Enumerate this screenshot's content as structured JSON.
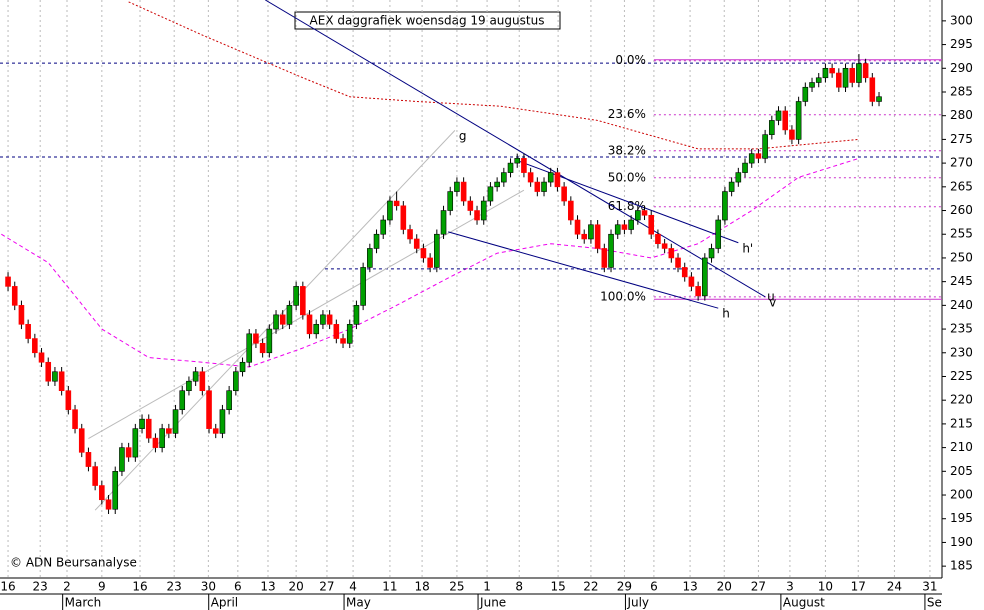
{
  "chart_data": {
    "type": "candlestick",
    "title": "AEX daggrafiek woensdag 19 augustus",
    "copyright": "© ADN Beursanalyse",
    "xlim": [
      -1.2,
      139.4
    ],
    "ylim": [
      182.5,
      304.4
    ],
    "yticks": [
      185,
      190,
      195,
      200,
      205,
      210,
      215,
      220,
      225,
      230,
      235,
      240,
      245,
      250,
      255,
      260,
      265,
      270,
      275,
      280,
      285,
      290,
      295,
      300
    ],
    "xticks": [
      {
        "value": 0,
        "label": "16"
      },
      {
        "value": 4.8,
        "label": "23"
      },
      {
        "value": 8.8,
        "label": "2"
      },
      {
        "value": 14,
        "label": "9"
      },
      {
        "value": 19.7,
        "label": "16"
      },
      {
        "value": 24.8,
        "label": "23"
      },
      {
        "value": 29.9,
        "label": "30"
      },
      {
        "value": 34.3,
        "label": "6"
      },
      {
        "value": 38.8,
        "label": "13"
      },
      {
        "value": 43,
        "label": "20"
      },
      {
        "value": 47.6,
        "label": "27"
      },
      {
        "value": 51.5,
        "label": "4"
      },
      {
        "value": 57,
        "label": "11"
      },
      {
        "value": 61.8,
        "label": "18"
      },
      {
        "value": 67,
        "label": "25"
      },
      {
        "value": 71.5,
        "label": "1"
      },
      {
        "value": 76.3,
        "label": "8"
      },
      {
        "value": 82.1,
        "label": "15"
      },
      {
        "value": 87,
        "label": "22"
      },
      {
        "value": 92,
        "label": "29"
      },
      {
        "value": 96.4,
        "label": "6"
      },
      {
        "value": 101.8,
        "label": "13"
      },
      {
        "value": 106.9,
        "label": "20"
      },
      {
        "value": 112,
        "label": "27"
      },
      {
        "value": 116.7,
        "label": "3"
      },
      {
        "value": 122,
        "label": "10"
      },
      {
        "value": 126.9,
        "label": "17"
      },
      {
        "value": 132.3,
        "label": "24"
      },
      {
        "value": 137.6,
        "label": "31"
      }
    ],
    "months": [
      {
        "value": 8.6,
        "label": "March"
      },
      {
        "value": 30.4,
        "label": "April"
      },
      {
        "value": 50.6,
        "label": "May"
      },
      {
        "value": 70.6,
        "label": "June"
      },
      {
        "value": 92.6,
        "label": "July"
      },
      {
        "value": 115.8,
        "label": "August"
      },
      {
        "value": 137.3,
        "label": "Se"
      }
    ],
    "up_color": "#00a000",
    "down_color": "#ff0000",
    "ohlc": [
      [
        246,
        247,
        243,
        244
      ],
      [
        244,
        245,
        239,
        240
      ],
      [
        240,
        241,
        235,
        236
      ],
      [
        236,
        237,
        232,
        233
      ],
      [
        233,
        234,
        229,
        230
      ],
      [
        230,
        231,
        227,
        228
      ],
      [
        228,
        229,
        223,
        224
      ],
      [
        224,
        227,
        223,
        226
      ],
      [
        226,
        227,
        221,
        222
      ],
      [
        222,
        223,
        217,
        218
      ],
      [
        218,
        219,
        213,
        214
      ],
      [
        214,
        215,
        208,
        209
      ],
      [
        209,
        210,
        205,
        206
      ],
      [
        206,
        207,
        201,
        202
      ],
      [
        202,
        203,
        198,
        199
      ],
      [
        199,
        200,
        196,
        197
      ],
      [
        197,
        206,
        196,
        205
      ],
      [
        205,
        211,
        204,
        210
      ],
      [
        210,
        211,
        207,
        208
      ],
      [
        208,
        215,
        207,
        214
      ],
      [
        214,
        217,
        213,
        216
      ],
      [
        216,
        217,
        211,
        212
      ],
      [
        212,
        213,
        209,
        210
      ],
      [
        210,
        215,
        209,
        214
      ],
      [
        214,
        215,
        212,
        213
      ],
      [
        213,
        219,
        212,
        218
      ],
      [
        218,
        223,
        217,
        222
      ],
      [
        222,
        225,
        221,
        224
      ],
      [
        224,
        227,
        223,
        226
      ],
      [
        226,
        227,
        221,
        222
      ],
      [
        222,
        223,
        213,
        214
      ],
      [
        214,
        215,
        212,
        213
      ],
      [
        213,
        219,
        212,
        218
      ],
      [
        218,
        223,
        217,
        222
      ],
      [
        222,
        227,
        221,
        226
      ],
      [
        226,
        229,
        225,
        228
      ],
      [
        228,
        235,
        227,
        234
      ],
      [
        234,
        235,
        231,
        232
      ],
      [
        232,
        233,
        229,
        230
      ],
      [
        230,
        236,
        229,
        235
      ],
      [
        235,
        239,
        234,
        238
      ],
      [
        238,
        239,
        235,
        236
      ],
      [
        236,
        241,
        235,
        240
      ],
      [
        240,
        245,
        239,
        244
      ],
      [
        244,
        245,
        237,
        238
      ],
      [
        238,
        239,
        233,
        234
      ],
      [
        234,
        237,
        233,
        236
      ],
      [
        236,
        239,
        235,
        238
      ],
      [
        238,
        239,
        235,
        236
      ],
      [
        236,
        237,
        232,
        233
      ],
      [
        233,
        234,
        231,
        232
      ],
      [
        232,
        237,
        231,
        236
      ],
      [
        236,
        241,
        235,
        240
      ],
      [
        240,
        249,
        239,
        248
      ],
      [
        248,
        253,
        247,
        252
      ],
      [
        252,
        256,
        251,
        255
      ],
      [
        255,
        259,
        254,
        258
      ],
      [
        258,
        263,
        257,
        262
      ],
      [
        262,
        264,
        260,
        261
      ],
      [
        261,
        262,
        255,
        256
      ],
      [
        256,
        257,
        253,
        254
      ],
      [
        254,
        255,
        251,
        252
      ],
      [
        252,
        253,
        249,
        250
      ],
      [
        250,
        251,
        247,
        248
      ],
      [
        248,
        256,
        247,
        255
      ],
      [
        255,
        261,
        254,
        260
      ],
      [
        260,
        265,
        259,
        264
      ],
      [
        264,
        267,
        263,
        266
      ],
      [
        266,
        267,
        261,
        262
      ],
      [
        262,
        263,
        259,
        260
      ],
      [
        260,
        261,
        257,
        258
      ],
      [
        258,
        263,
        257,
        262
      ],
      [
        262,
        266,
        261,
        265
      ],
      [
        265,
        267,
        264,
        266
      ],
      [
        266,
        269,
        265,
        268
      ],
      [
        268,
        271,
        267,
        270
      ],
      [
        270,
        272,
        269,
        271
      ],
      [
        271,
        272,
        267,
        268
      ],
      [
        268,
        269,
        265,
        266
      ],
      [
        266,
        267,
        263,
        264
      ],
      [
        264,
        267,
        263,
        266
      ],
      [
        266,
        269,
        265,
        268
      ],
      [
        268,
        269,
        264,
        265
      ],
      [
        265,
        266,
        261,
        262
      ],
      [
        262,
        263,
        257,
        258
      ],
      [
        258,
        259,
        254,
        255
      ],
      [
        255,
        256,
        253,
        254
      ],
      [
        254,
        258,
        253,
        257
      ],
      [
        257,
        258,
        251,
        252
      ],
      [
        252,
        253,
        247,
        248
      ],
      [
        248,
        256,
        247,
        255
      ],
      [
        255,
        258,
        254,
        257
      ],
      [
        257,
        258,
        255,
        256
      ],
      [
        256,
        259,
        255,
        258
      ],
      [
        258,
        261,
        257,
        260
      ],
      [
        260,
        261,
        258,
        259
      ],
      [
        259,
        260,
        254,
        255
      ],
      [
        255,
        256,
        252,
        253
      ],
      [
        253,
        254,
        251,
        252
      ],
      [
        252,
        253,
        249,
        250
      ],
      [
        250,
        251,
        247,
        248
      ],
      [
        248,
        249,
        245,
        246
      ],
      [
        246,
        247,
        243,
        244
      ],
      [
        244,
        245,
        241,
        242
      ],
      [
        242,
        251,
        241,
        250
      ],
      [
        250,
        253,
        249,
        252
      ],
      [
        252,
        259,
        251,
        258
      ],
      [
        258,
        265,
        257,
        264
      ],
      [
        264,
        267,
        263,
        266
      ],
      [
        266,
        269,
        265,
        268
      ],
      [
        268,
        271,
        267,
        270
      ],
      [
        270,
        273,
        269,
        272
      ],
      [
        272,
        273,
        270,
        271
      ],
      [
        271,
        277,
        270,
        276
      ],
      [
        276,
        280,
        275,
        279
      ],
      [
        279,
        282,
        278,
        281
      ],
      [
        281,
        282,
        276,
        277
      ],
      [
        277,
        278,
        274,
        275
      ],
      [
        275,
        284,
        274,
        283
      ],
      [
        283,
        287,
        282,
        286
      ],
      [
        286,
        288,
        285,
        287
      ],
      [
        287,
        289,
        286,
        288
      ],
      [
        288,
        291,
        287,
        290
      ],
      [
        290,
        291,
        288,
        289
      ],
      [
        289,
        290,
        285,
        286
      ],
      [
        286,
        291,
        285,
        290
      ],
      [
        290,
        291,
        286,
        287
      ],
      [
        287,
        293,
        286,
        291
      ],
      [
        291,
        292,
        287,
        288
      ],
      [
        288,
        289,
        282,
        283
      ],
      [
        283,
        285,
        282,
        284
      ]
    ],
    "moving_averages": [
      {
        "color": "#cc0000",
        "x": [
          18,
          29,
          44,
          51,
          61,
          73.5,
          88,
          103,
          112,
          127
        ],
        "values": [
          304,
          297,
          288,
          284,
          283,
          282,
          279,
          273,
          273,
          275
        ]
      },
      {
        "color": "#ee00ee",
        "x": [
          -1,
          6,
          14,
          21,
          29,
          36,
          44,
          51,
          58,
          66,
          73,
          81,
          88,
          96,
          103,
          111,
          118,
          127
        ],
        "values": [
          255,
          249,
          235,
          229,
          228,
          227,
          231,
          235,
          240,
          246,
          251,
          253,
          252,
          250,
          253,
          260,
          267,
          271
        ]
      }
    ],
    "fibonacci": {
      "color": "#cc33cc",
      "start": 96.4,
      "levels": [
        {
          "label": "0.0%",
          "value": 291.6
        },
        {
          "label": "23.6%",
          "value": 280.2
        },
        {
          "label": "38.2%",
          "value": 272.6
        },
        {
          "label": "50.0%",
          "value": 266.9
        },
        {
          "label": "61.8%",
          "value": 260.8
        },
        {
          "label": "100.0%",
          "value": 241.8
        }
      ]
    },
    "hlines": [
      {
        "value": 291.1,
        "start": -1.2,
        "color": "#000080"
      },
      {
        "value": 271.3,
        "start": -1.2,
        "color": "#000080"
      },
      {
        "value": 247.7,
        "start": 47.3,
        "color": "#000080"
      }
    ],
    "solid_hlines": [
      {
        "value": 291.8,
        "start": 96.4,
        "color": "#cc33cc"
      },
      {
        "value": 241.3,
        "start": 96.4,
        "color": "#cc33cc"
      }
    ],
    "trendlines": [
      {
        "label": "g",
        "color": "#bbbbbb",
        "x": [
          13,
          66.7
        ],
        "values": [
          196.8,
          276.9
        ]
      },
      {
        "color": "#bbbbbb",
        "x": [
          12,
          77
        ],
        "values": [
          211.9,
          264.3
        ]
      },
      {
        "label": "v",
        "color": "#000080",
        "x": [
          38.4,
          113
        ],
        "values": [
          304.4,
          241.8
        ]
      },
      {
        "label": "h'",
        "color": "#000080",
        "x": [
          75.7,
          109
        ],
        "values": [
          270.7,
          253.2
        ]
      },
      {
        "label": "h",
        "color": "#000080",
        "x": [
          65.7,
          106
        ],
        "values": [
          255.5,
          239.4
        ]
      }
    ],
    "u_label": "u"
  }
}
